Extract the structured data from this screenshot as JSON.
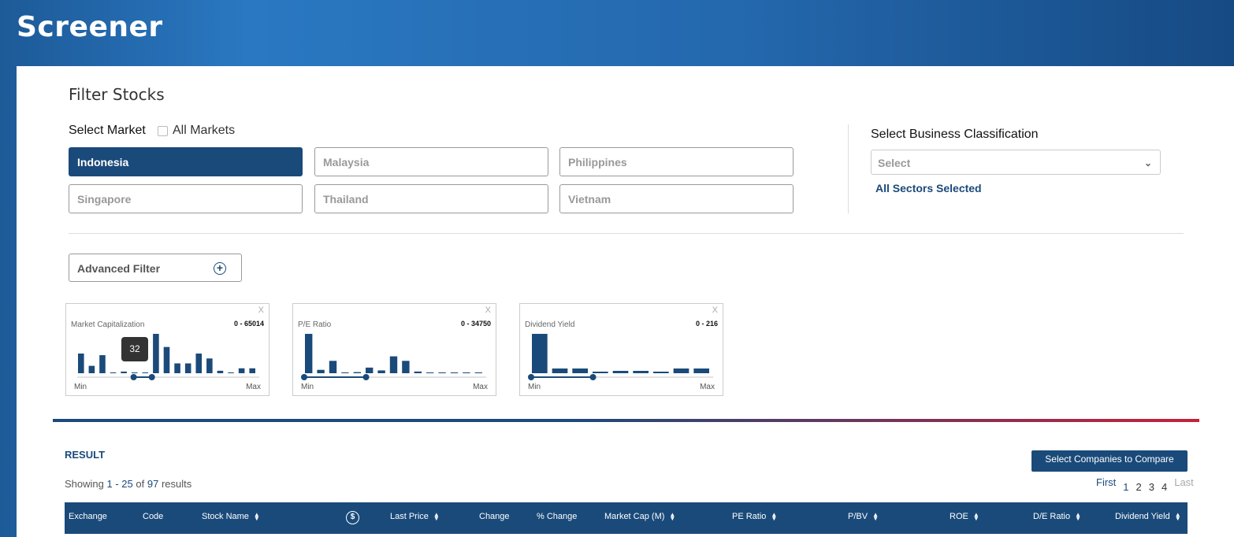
{
  "app": {
    "title": "Screener"
  },
  "filter": {
    "title": "Filter Stocks",
    "market_label": "Select Market",
    "all_markets_label": "All Markets",
    "all_markets_checked": false,
    "markets": [
      {
        "label": "Indonesia",
        "selected": true
      },
      {
        "label": "Malaysia",
        "selected": false
      },
      {
        "label": "Philippines",
        "selected": false
      },
      {
        "label": "Singapore",
        "selected": false
      },
      {
        "label": "Thailand",
        "selected": false
      },
      {
        "label": "Vietnam",
        "selected": false
      }
    ],
    "business_label": "Select Business Classification",
    "business_select_placeholder": "Select",
    "sectors_status": "All Sectors Selected",
    "advanced_label": "Advanced Filter"
  },
  "range_filters": [
    {
      "label": "Market Capitalization",
      "range": "0 - 65014",
      "close": "X",
      "min_label": "Min",
      "max_label": "Max",
      "tooltip": "32",
      "histogram": [
        24,
        9,
        22,
        0,
        2,
        0,
        0,
        48,
        32,
        12,
        12,
        24,
        18,
        3,
        0,
        6,
        6
      ],
      "handle_low": 0.31,
      "handle_high": 0.41
    },
    {
      "label": "P/E Ratio",
      "range": "0 - 34750",
      "close": "X",
      "min_label": "Min",
      "max_label": "Max",
      "histogram": [
        70,
        6,
        22,
        0,
        2,
        10,
        5,
        30,
        22,
        3,
        0,
        0,
        0,
        0,
        1
      ],
      "handle_low": 0.0,
      "handle_high": 0.34
    },
    {
      "label": "Dividend Yield",
      "range": "0 - 216",
      "close": "X",
      "min_label": "Min",
      "max_label": "Max",
      "histogram": [
        50,
        6,
        6,
        2,
        3,
        3,
        2,
        6,
        6
      ],
      "handle_low": 0.0,
      "handle_high": 0.34
    }
  ],
  "result": {
    "heading": "RESULT",
    "compare_button": "Select Companies to Compare",
    "showing_prefix": "Showing",
    "showing_range": "1 - 25",
    "showing_of": "of",
    "showing_total": "97",
    "showing_suffix": "results"
  },
  "pagination": {
    "first": "First",
    "pages": [
      "1",
      "2",
      "3",
      "4"
    ],
    "last": "Last"
  },
  "table": {
    "columns": [
      {
        "label": "Exchange",
        "sortable": false
      },
      {
        "label": "Code",
        "sortable": false
      },
      {
        "label": "Stock Name",
        "sortable": true
      },
      {
        "label": "",
        "icon": "currency-switch-icon",
        "sortable": false
      },
      {
        "label": "Last Price",
        "sortable": true
      },
      {
        "label": "Change",
        "sortable": false
      },
      {
        "label": "% Change",
        "sortable": false
      },
      {
        "label": "Market Cap (M)",
        "sortable": true
      },
      {
        "label": "PE Ratio",
        "sortable": true
      },
      {
        "label": "P/BV",
        "sortable": true
      },
      {
        "label": "ROE",
        "sortable": true
      },
      {
        "label": "D/E Ratio",
        "sortable": true
      },
      {
        "label": "Dividend Yield",
        "sortable": true
      }
    ]
  },
  "colors": {
    "accent": "#1a4a7a",
    "bar": "#1a4a7a",
    "grad_end": "#c8203a"
  }
}
